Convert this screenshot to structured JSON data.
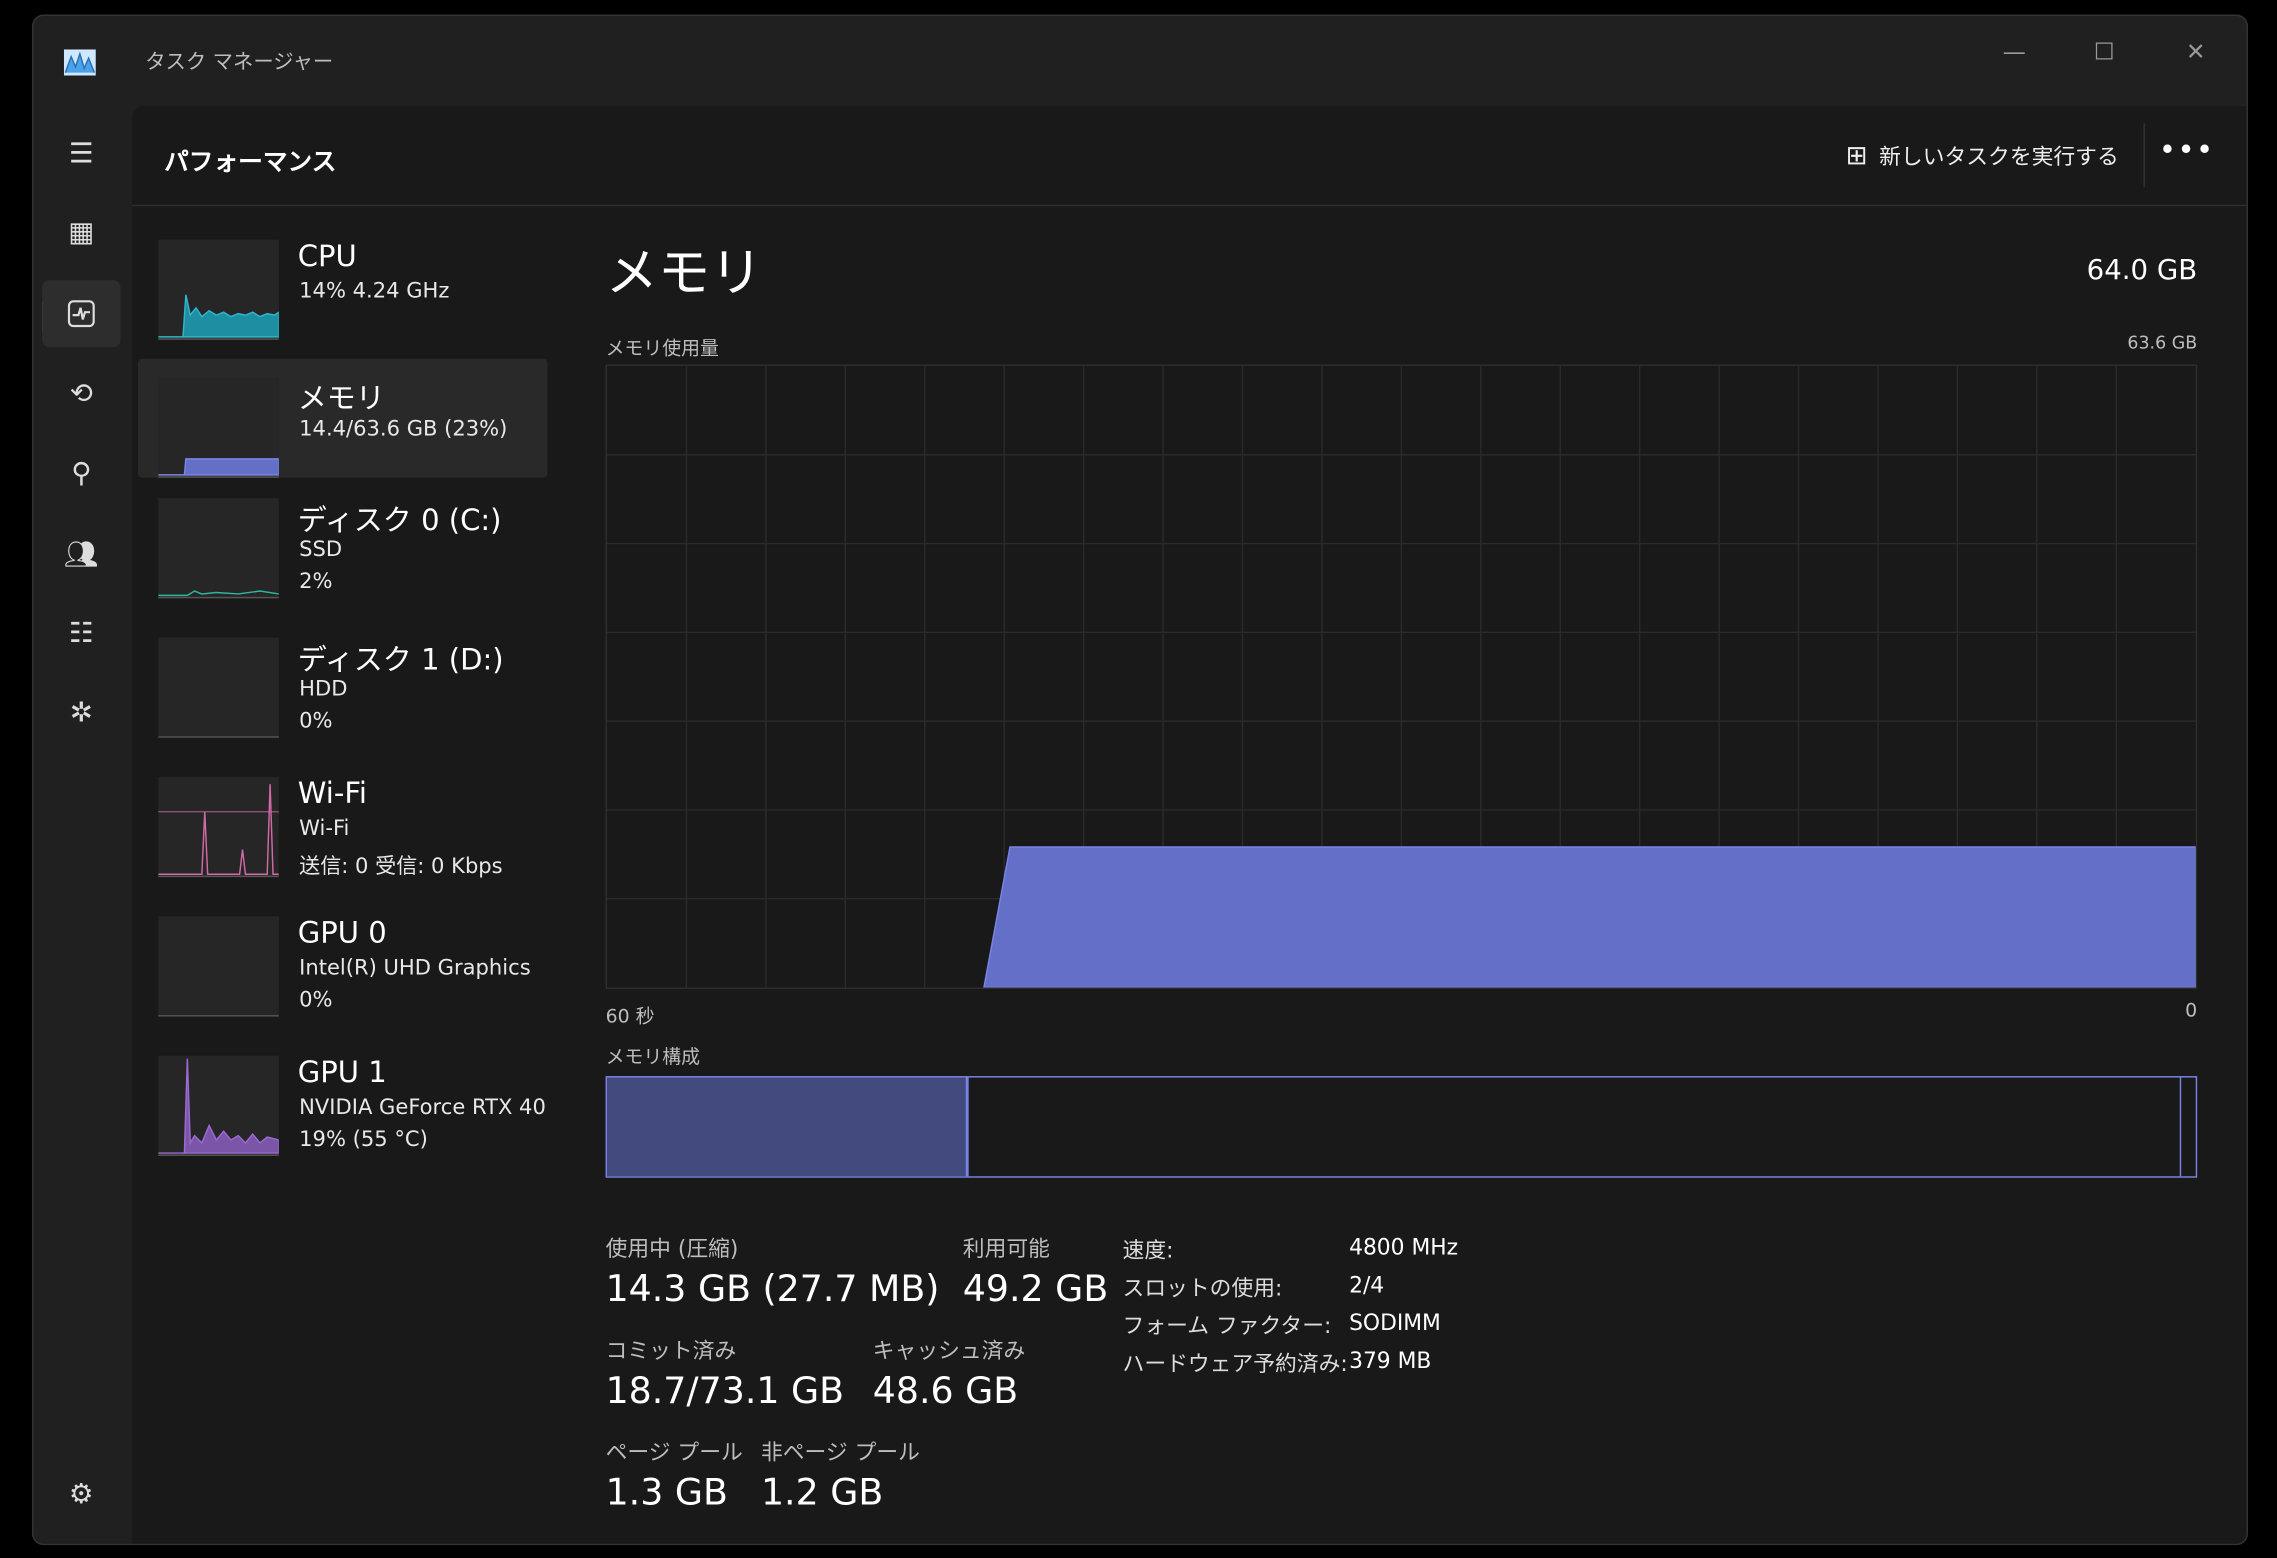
{
  "window": {
    "title": "タスク マネージャー",
    "minimize": "—",
    "maximize": "☐",
    "close": "✕"
  },
  "header": {
    "title": "パフォーマンス",
    "run_task": "新しいタスクを実行する",
    "more": "•••"
  },
  "nav": [
    {
      "icon": "hamburger-icon"
    },
    {
      "icon": "processes-icon"
    },
    {
      "icon": "performance-icon",
      "active": true
    },
    {
      "icon": "app-history-icon"
    },
    {
      "icon": "startup-apps-icon"
    },
    {
      "icon": "users-icon"
    },
    {
      "icon": "details-icon"
    },
    {
      "icon": "services-icon"
    },
    {
      "icon": "settings-icon"
    }
  ],
  "devices": [
    {
      "name": "CPU",
      "line1": "14%  4.24 GHz",
      "line2": "",
      "color": "#2fb6cc"
    },
    {
      "name": "メモリ",
      "line1": "14.4/63.6 GB (23%)",
      "line2": "",
      "color": "#6f7fdc",
      "selected": true
    },
    {
      "name": "ディスク 0 (C:)",
      "line1": "SSD",
      "line2": "2%",
      "color": "#2fb6a0"
    },
    {
      "name": "ディスク 1 (D:)",
      "line1": "HDD",
      "line2": "0%",
      "color": "#2fb6a0"
    },
    {
      "name": "Wi-Fi",
      "line1": "Wi-Fi",
      "line2": "送信: 0 受信: 0 Kbps",
      "color": "#d06aa6"
    },
    {
      "name": "GPU 0",
      "line1": "Intel(R) UHD Graphics",
      "line2": "0%",
      "color": "#9b6bd0"
    },
    {
      "name": "GPU 1",
      "line1": "NVIDIA GeForce RTX 40",
      "line2": "19%  (55 °C)",
      "color": "#9b6bd0"
    }
  ],
  "memory": {
    "title": "メモリ",
    "total": "64.0 GB",
    "usage_label": "メモリ使用量",
    "usage_max": "63.6 GB",
    "time_left": "60 秒",
    "time_right": "0",
    "composition_label": "メモリ構成",
    "usage_percent_of_max": 22.6,
    "accent": "#6470c8",
    "stats": {
      "in_use_label": "使用中 (圧縮)",
      "in_use": "14.3 GB (27.7 MB)",
      "available_label": "利用可能",
      "available": "49.2 GB",
      "committed_label": "コミット済み",
      "committed": "18.7/73.1 GB",
      "cached_label": "キャッシュ済み",
      "cached": "48.6 GB",
      "paged_label": "ページ プール",
      "paged": "1.3 GB",
      "nonpaged_label": "非ページ プール",
      "nonpaged": "1.2 GB"
    },
    "details": [
      {
        "k": "速度:",
        "v": "4800 MHz"
      },
      {
        "k": "スロットの使用:",
        "v": "2/4"
      },
      {
        "k": "フォーム ファクター:",
        "v": "SODIMM"
      },
      {
        "k": "ハードウェア予約済み:",
        "v": "379 MB"
      }
    ]
  }
}
